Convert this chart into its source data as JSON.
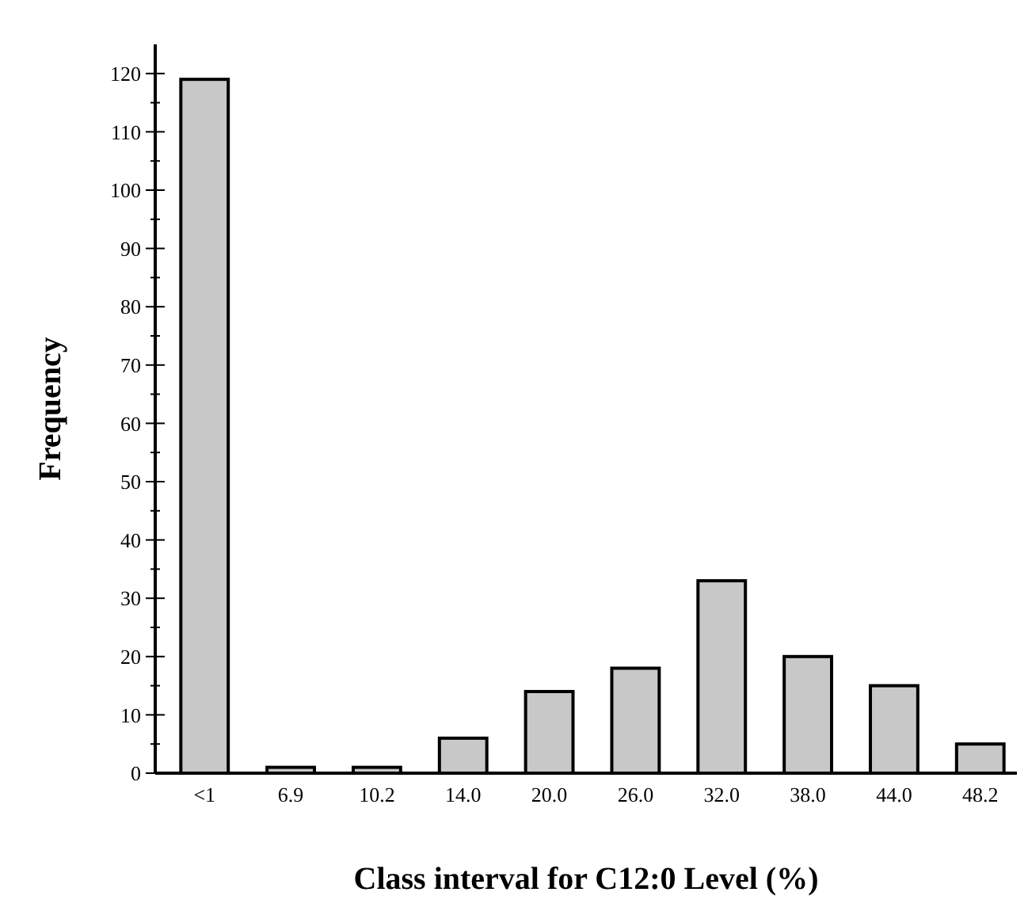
{
  "chart_data": {
    "type": "bar",
    "xlabel": "Class interval for C12:0 Level (%)",
    "ylabel": "Frequency",
    "categories": [
      "<1",
      "6.9",
      "10.2",
      "14.0",
      "20.0",
      "26.0",
      "32.0",
      "38.0",
      "44.0",
      "48.2"
    ],
    "values": [
      119,
      1,
      1,
      6,
      14,
      18,
      33,
      20,
      15,
      5
    ],
    "color": "#c8c8c8",
    "ylim": [
      0,
      125
    ],
    "yticks": [
      0,
      {
        "value": 5,
        "label": null
      },
      10,
      {
        "value": 15,
        "label": null
      },
      20,
      {
        "value": 25,
        "label": null
      },
      30,
      {
        "value": 35,
        "label": null
      },
      40,
      {
        "value": 45,
        "label": null
      },
      50,
      {
        "value": 55,
        "label": null
      },
      60,
      {
        "value": 65,
        "label": null
      },
      70,
      {
        "value": 75,
        "label": null
      },
      80,
      {
        "value": 85,
        "label": null
      },
      90,
      {
        "value": 95,
        "label": null
      },
      100,
      {
        "value": 105,
        "label": null
      },
      110,
      {
        "value": 115,
        "label": null
      },
      120
    ]
  }
}
